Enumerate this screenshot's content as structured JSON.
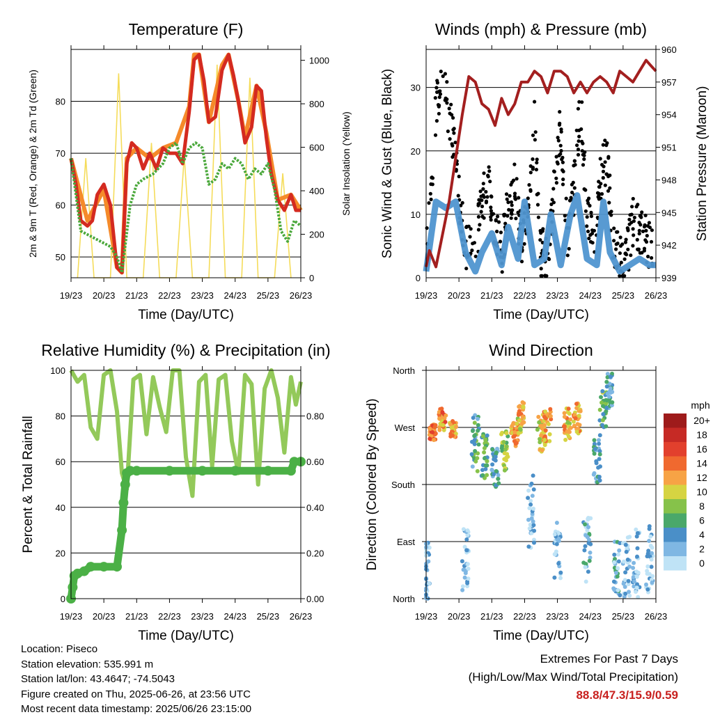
{
  "chart_data": [
    {
      "type": "line",
      "title": "Temperature (F)",
      "xlabel": "Time (Day/UTC)",
      "ylabel": "2m & 9m T (Red, Orange) & 2m Td (Green)",
      "y2label": "Solar Insolation (Yellow)",
      "x_ticks": [
        "19/23",
        "20/23",
        "21/23",
        "22/23",
        "23/23",
        "24/23",
        "25/23",
        "26/23"
      ],
      "ylim": [
        46,
        90
      ],
      "y_ticks": [
        50,
        60,
        70,
        80
      ],
      "y2lim": [
        0,
        1050
      ],
      "y2_ticks": [
        0,
        200,
        400,
        600,
        800,
        1000
      ],
      "grid": "horizontal at left ticks",
      "series": [
        {
          "name": "2m T",
          "color": "#d42a20",
          "x": [
            0,
            0.15,
            0.3,
            0.5,
            0.65,
            0.8,
            1.0,
            1.2,
            1.4,
            1.55,
            1.7,
            1.85,
            2.0,
            2.2,
            2.4,
            2.6,
            2.8,
            3.0,
            3.2,
            3.4,
            3.6,
            3.75,
            3.9,
            4.05,
            4.2,
            4.4,
            4.6,
            4.8,
            4.95,
            5.1,
            5.3,
            5.5,
            5.65,
            5.8,
            5.95,
            6.1,
            6.3,
            6.5,
            6.7,
            6.85,
            7.0
          ],
          "values": [
            69,
            64,
            57,
            56,
            57,
            62,
            64,
            60,
            48,
            47,
            68,
            72,
            71,
            67,
            70,
            67,
            71,
            70,
            70,
            68,
            78,
            88,
            89,
            84,
            76,
            77,
            86,
            89,
            85,
            80,
            72,
            75,
            83,
            82,
            73,
            66,
            61,
            59,
            62,
            59,
            59
          ]
        },
        {
          "name": "9m T",
          "color": "#f58a2a",
          "x": [
            0,
            0.5,
            1.0,
            1.4,
            1.55,
            1.7,
            2.0,
            2.4,
            2.8,
            3.2,
            3.6,
            3.75,
            3.9,
            4.2,
            4.6,
            4.8,
            5.1,
            5.3,
            5.65,
            5.95,
            6.3,
            6.7,
            7.0
          ],
          "values": [
            69,
            57,
            63,
            48,
            47,
            69,
            71,
            69,
            71,
            72,
            79,
            89,
            89,
            76,
            87,
            89,
            80,
            73,
            83,
            74,
            61,
            62,
            59
          ]
        },
        {
          "name": "2m Td",
          "color": "#4aa83b",
          "x": [
            0,
            0.3,
            0.6,
            0.9,
            1.2,
            1.4,
            1.55,
            1.8,
            2.0,
            2.2,
            2.5,
            2.8,
            3.0,
            3.2,
            3.4,
            3.6,
            3.8,
            4.0,
            4.2,
            4.4,
            4.6,
            4.8,
            5.0,
            5.2,
            5.4,
            5.6,
            5.8,
            6.0,
            6.2,
            6.4,
            6.6,
            6.8,
            7.0
          ],
          "values": [
            69,
            55,
            54,
            53,
            52,
            50,
            47,
            60,
            64,
            65,
            66,
            68,
            71,
            72,
            68,
            71,
            72,
            71,
            64,
            65,
            68,
            67,
            69,
            68,
            65,
            67,
            66,
            68,
            63,
            55,
            53,
            57,
            56
          ]
        },
        {
          "name": "Solar Insolation",
          "color": "#f5dc5a",
          "axis": "right",
          "x": [
            0.2,
            0.45,
            0.7,
            1.2,
            1.45,
            1.7,
            2.2,
            2.45,
            2.7,
            3.2,
            3.45,
            3.7,
            4.2,
            4.45,
            4.7,
            5.2,
            5.45,
            5.7,
            6.2,
            6.45,
            6.7
          ],
          "values": [
            0,
            550,
            0,
            0,
            940,
            0,
            0,
            620,
            0,
            0,
            560,
            0,
            0,
            980,
            0,
            0,
            920,
            0,
            0,
            480,
            0
          ]
        }
      ]
    },
    {
      "type": "scatter",
      "title": "Winds (mph) & Pressure (mb)",
      "xlabel": "Time (Day/UTC)",
      "ylabel": "Sonic Wind & Gust (Blue, Black)",
      "y2label": "Station Pressure (Maroon)",
      "x_ticks": [
        "19/23",
        "20/23",
        "21/23",
        "22/23",
        "23/23",
        "24/23",
        "25/23",
        "26/23"
      ],
      "ylim": [
        0,
        36
      ],
      "y_ticks": [
        0,
        10,
        20,
        30
      ],
      "y2lim": [
        939,
        960
      ],
      "y2_ticks": [
        939,
        942,
        945,
        948,
        951,
        954,
        957,
        960
      ],
      "grid": "horizontal at left ticks",
      "series": [
        {
          "name": "Wind",
          "color": "#4f95d0",
          "x": [
            0,
            0.3,
            0.6,
            0.9,
            1.2,
            1.5,
            1.7,
            2.0,
            2.3,
            2.5,
            2.8,
            3.0,
            3.3,
            3.6,
            3.8,
            4.1,
            4.4,
            4.6,
            4.9,
            5.2,
            5.4,
            5.6,
            5.9,
            6.2,
            6.5,
            6.8,
            7.0
          ],
          "values": [
            1,
            12,
            11,
            12,
            4,
            1,
            4,
            7,
            2,
            8,
            3,
            12,
            2,
            3,
            10,
            2,
            10,
            13,
            3,
            2,
            12,
            4,
            1,
            2,
            3,
            2,
            2
          ]
        },
        {
          "name": "Gust",
          "color": "#000000",
          "x": [
            0,
            0.3,
            0.5,
            0.8,
            1.0,
            1.2,
            1.5,
            1.7,
            1.9,
            2.1,
            2.3,
            2.5,
            2.7,
            2.9,
            3.1,
            3.3,
            3.5,
            3.7,
            3.9,
            4.1,
            4.3,
            4.5,
            4.7,
            4.9,
            5.1,
            5.3,
            5.5,
            5.7,
            5.9,
            6.1,
            6.3,
            6.5,
            6.7,
            6.9
          ],
          "values": [
            3,
            26,
            33,
            22,
            14,
            5,
            4,
            12,
            16,
            8,
            3,
            12,
            15,
            5,
            10,
            24,
            4,
            3,
            14,
            24,
            6,
            14,
            28,
            11,
            4,
            16,
            19,
            5,
            3,
            3,
            9,
            8,
            6,
            5
          ]
        },
        {
          "name": "Pressure",
          "color": "#a31f1f",
          "axis": "right",
          "x": [
            0,
            0.1,
            0.3,
            0.5,
            0.7,
            0.9,
            1.1,
            1.3,
            1.5,
            1.7,
            1.9,
            2.1,
            2.3,
            2.5,
            2.7,
            2.9,
            3.1,
            3.3,
            3.5,
            3.7,
            3.9,
            4.1,
            4.3,
            4.5,
            4.7,
            4.9,
            5.1,
            5.3,
            5.5,
            5.7,
            5.9,
            6.1,
            6.3,
            6.5,
            6.7,
            6.85,
            7.0
          ],
          "values": [
            940,
            941.5,
            940,
            943,
            946,
            950,
            954,
            957.5,
            957,
            955,
            954.5,
            953,
            955.5,
            954,
            955,
            957,
            957,
            958,
            957.5,
            956,
            958,
            958,
            957.5,
            956,
            957,
            956,
            957,
            957.5,
            957,
            956,
            958,
            957.5,
            957,
            958,
            959,
            958.5,
            958
          ]
        }
      ]
    },
    {
      "type": "line",
      "title": "Relative Humidity (%) & Precipitation (in)",
      "xlabel": "Time (Day/UTC)",
      "ylabel": "Percent & Total Rainfall",
      "x_ticks": [
        "19/23",
        "20/23",
        "21/23",
        "22/23",
        "23/23",
        "24/23",
        "25/23",
        "26/23"
      ],
      "ylim": [
        0,
        100
      ],
      "y_ticks": [
        0,
        20,
        40,
        60,
        80,
        100
      ],
      "y2lim": [
        0,
        1.0
      ],
      "y2_ticks": [
        "0.00",
        "0.20",
        "0.40",
        "0.60",
        "0.80"
      ],
      "grid": "horizontal at left ticks",
      "series": [
        {
          "name": "Relative Humidity",
          "color": "#93c95a",
          "x": [
            0,
            0.2,
            0.4,
            0.6,
            0.8,
            1.0,
            1.2,
            1.4,
            1.55,
            1.7,
            1.9,
            2.1,
            2.3,
            2.5,
            2.7,
            2.9,
            3.1,
            3.3,
            3.5,
            3.7,
            3.9,
            4.1,
            4.3,
            4.5,
            4.7,
            4.9,
            5.1,
            5.3,
            5.5,
            5.7,
            5.9,
            6.1,
            6.3,
            6.5,
            6.7,
            6.85,
            7.0
          ],
          "values": [
            100,
            95,
            98,
            75,
            70,
            98,
            100,
            82,
            55,
            48,
            96,
            98,
            72,
            97,
            84,
            73,
            100,
            100,
            62,
            45,
            95,
            98,
            58,
            96,
            98,
            69,
            55,
            98,
            94,
            50,
            92,
            100,
            88,
            64,
            97,
            85,
            95
          ]
        },
        {
          "name": "Total Rainfall",
          "color": "#4bb046",
          "axis": "right",
          "x": [
            0,
            0.05,
            0.1,
            0.2,
            0.4,
            0.6,
            1.0,
            1.4,
            1.55,
            1.6,
            1.65,
            1.7,
            1.8,
            2.0,
            3.0,
            4.0,
            5.0,
            6.0,
            6.7,
            6.8,
            7.0
          ],
          "values": [
            0,
            0.05,
            0.1,
            0.11,
            0.12,
            0.14,
            0.14,
            0.14,
            0.3,
            0.42,
            0.5,
            0.55,
            0.56,
            0.56,
            0.56,
            0.56,
            0.56,
            0.56,
            0.56,
            0.6,
            0.6
          ]
        }
      ]
    },
    {
      "type": "scatter",
      "title": "Wind Direction",
      "xlabel": "Time (Day/UTC)",
      "ylabel": "Direction (Colored By Speed)",
      "x_ticks": [
        "19/23",
        "20/23",
        "21/23",
        "22/23",
        "23/23",
        "24/23",
        "25/23",
        "26/23"
      ],
      "y_ticks": [
        "North",
        "East",
        "South",
        "West",
        "North"
      ],
      "ylim": [
        0,
        360
      ],
      "grid": "horizontal at ticks",
      "colorbar": {
        "title": "mph",
        "labels": [
          "20+",
          "18",
          "16",
          "14",
          "12",
          "10",
          "8",
          "6",
          "4",
          "2",
          "0"
        ],
        "colors": [
          "#9e1b1b",
          "#c62a25",
          "#e2402d",
          "#f0692f",
          "#f7a345",
          "#d6d442",
          "#86c24a",
          "#4aa86a",
          "#4a8fc8",
          "#7fb7e3",
          "#bfe3f6"
        ]
      },
      "clusters": [
        {
          "day": 0.2,
          "dir": [
            250,
            275
          ],
          "speed": 14
        },
        {
          "day": 0.5,
          "dir": [
            265,
            300
          ],
          "speed": 13
        },
        {
          "day": 0.8,
          "dir": [
            255,
            280
          ],
          "speed": 12
        },
        {
          "day": 0.0,
          "dir": [
            0,
            90
          ],
          "speed": 2
        },
        {
          "day": 1.2,
          "dir": [
            10,
            110
          ],
          "speed": 2
        },
        {
          "day": 1.5,
          "dir": [
            200,
            290
          ],
          "speed": 5
        },
        {
          "day": 1.8,
          "dir": [
            190,
            260
          ],
          "speed": 6
        },
        {
          "day": 2.1,
          "dir": [
            170,
            240
          ],
          "speed": 4
        },
        {
          "day": 2.4,
          "dir": [
            200,
            270
          ],
          "speed": 8
        },
        {
          "day": 2.7,
          "dir": [
            240,
            280
          ],
          "speed": 13
        },
        {
          "day": 2.9,
          "dir": [
            260,
            310
          ],
          "speed": 11
        },
        {
          "day": 3.2,
          "dir": [
            80,
            200
          ],
          "speed": 2
        },
        {
          "day": 3.5,
          "dir": [
            230,
            290
          ],
          "speed": 10
        },
        {
          "day": 3.7,
          "dir": [
            240,
            300
          ],
          "speed": 12
        },
        {
          "day": 4.0,
          "dir": [
            30,
            120
          ],
          "speed": 2
        },
        {
          "day": 4.3,
          "dir": [
            250,
            300
          ],
          "speed": 11
        },
        {
          "day": 4.6,
          "dir": [
            260,
            310
          ],
          "speed": 12
        },
        {
          "day": 4.9,
          "dir": [
            20,
            130
          ],
          "speed": 3
        },
        {
          "day": 5.2,
          "dir": [
            180,
            260
          ],
          "speed": 4
        },
        {
          "day": 5.4,
          "dir": [
            270,
            330
          ],
          "speed": 7
        },
        {
          "day": 5.6,
          "dir": [
            300,
            355
          ],
          "speed": 4
        },
        {
          "day": 5.8,
          "dir": [
            0,
            90
          ],
          "speed": 3
        },
        {
          "day": 6.1,
          "dir": [
            0,
            100
          ],
          "speed": 2
        },
        {
          "day": 6.4,
          "dir": [
            0,
            110
          ],
          "speed": 2
        },
        {
          "day": 6.8,
          "dir": [
            0,
            120
          ],
          "speed": 2
        }
      ]
    }
  ],
  "footer": {
    "location": "Location: Piseco",
    "elevation": "Station elevation: 535.991 m",
    "latlon": "Station lat/lon: 43.4647; -74.5043",
    "created": "Figure created on Thu, 2025-06-26, at 23:56 UTC",
    "recent": "Most recent data timestamp: 2025/06/26 23:15:00"
  },
  "extremes": {
    "title": "Extremes For Past 7 Days",
    "subtitle": "(High/Low/Max Wind/Total Precipitation)",
    "values": "88.8/47.3/15.9/0.59"
  }
}
